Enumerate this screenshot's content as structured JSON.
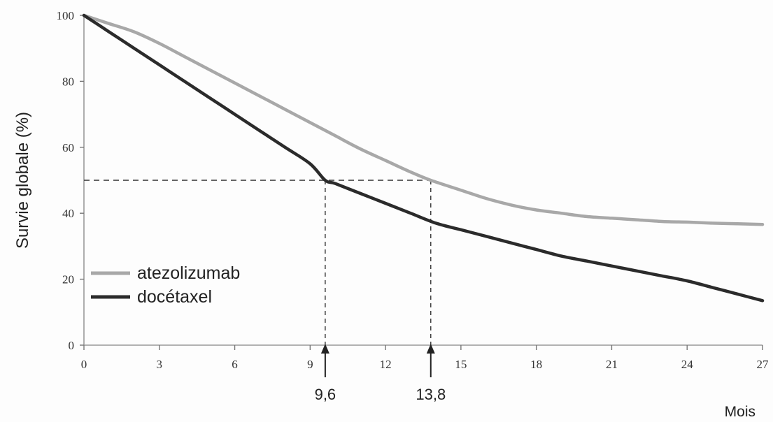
{
  "chart_data": {
    "type": "line",
    "ylabel": "Survie globale (%)",
    "xunit": "Mois",
    "x_ticks": [
      0,
      3,
      6,
      9,
      12,
      15,
      18,
      21,
      24,
      27
    ],
    "y_ticks": [
      0,
      20,
      40,
      60,
      80,
      100
    ],
    "xlim": [
      0,
      27
    ],
    "ylim": [
      0,
      100
    ],
    "grid": false,
    "legend_position": "bottom-left",
    "series": [
      {
        "name": "atezolizumab",
        "color": "#a8a8a8",
        "x": [
          0,
          1,
          2,
          3,
          4,
          5,
          6,
          7,
          8,
          9,
          10,
          11,
          12,
          13,
          13.8,
          15,
          16,
          17,
          18,
          19,
          20,
          21,
          22,
          23,
          24,
          25,
          26,
          27
        ],
        "y": [
          100,
          97.5,
          95,
          91.5,
          87.5,
          83.5,
          79.5,
          75.5,
          71.5,
          67.5,
          63.5,
          59.5,
          56,
          52.5,
          50,
          47,
          44.5,
          42.5,
          41,
          40,
          39,
          38.5,
          38,
          37.5,
          37.3,
          37,
          36.8,
          36.6
        ]
      },
      {
        "name": "docétaxel",
        "color": "#2b2b2b",
        "x": [
          0,
          1,
          2,
          3,
          4,
          5,
          6,
          7,
          8,
          9,
          9.6,
          10,
          11,
          12,
          13,
          14,
          15,
          16,
          17,
          18,
          19,
          20,
          21,
          22,
          23,
          24,
          25,
          26,
          27
        ],
        "y": [
          100,
          95,
          90,
          85,
          80,
          75,
          70,
          65,
          60,
          55,
          50,
          49,
          46,
          43,
          40,
          37,
          35,
          33,
          31,
          29,
          27,
          25.5,
          24,
          22.5,
          21,
          19.5,
          17.5,
          15.5,
          13.5
        ]
      }
    ],
    "reference_line": {
      "y": 50,
      "style": "dashed"
    },
    "medians": [
      {
        "series": "docétaxel",
        "x": 9.6,
        "label": "9,6"
      },
      {
        "series": "atezolizumab",
        "x": 13.8,
        "label": "13,8"
      }
    ]
  }
}
